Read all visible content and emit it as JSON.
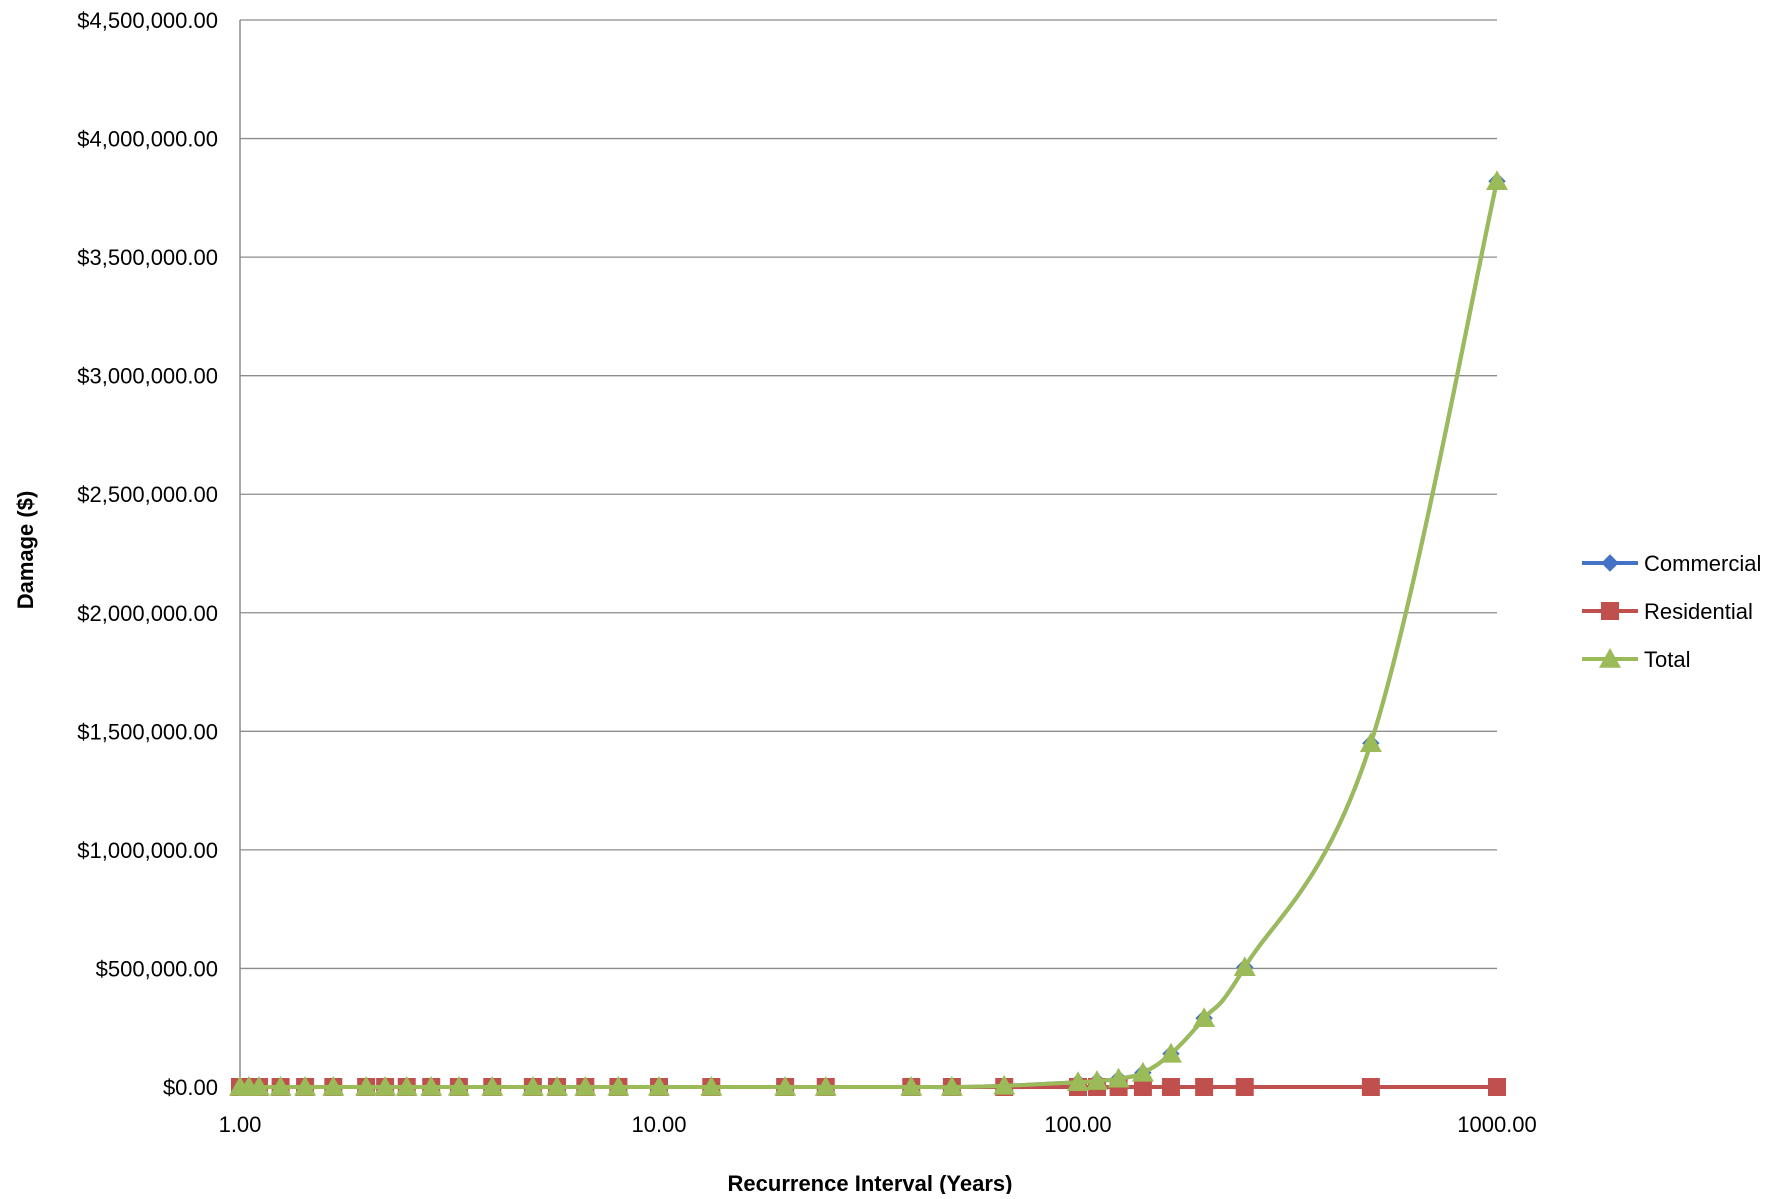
{
  "chart_data": {
    "type": "line",
    "title": "",
    "xlabel": "Recurrence Interval (Years)",
    "ylabel": "Damage ($)",
    "x_scale": "log",
    "xlim": [
      1,
      1000
    ],
    "ylim": [
      0,
      4500000
    ],
    "x_ticks": [
      "1.00",
      "10.00",
      "100.00",
      "1000.00"
    ],
    "y_ticks": [
      "$0.00",
      "$500,000.00",
      "$1,000,000.00",
      "$1,500,000.00",
      "$2,000,000.00",
      "$2,500,000.00",
      "$3,000,000.00",
      "$3,500,000.00",
      "$4,000,000.00",
      "$4,500,000.00"
    ],
    "grid": "horizontal",
    "legend_position": "right",
    "x": [
      1,
      1.05,
      1.11,
      1.25,
      1.43,
      1.67,
      2,
      2.22,
      2.5,
      2.86,
      3.33,
      4,
      5,
      5.71,
      6.67,
      8,
      10,
      13.33,
      20,
      25,
      40,
      50,
      66.67,
      100,
      111,
      125,
      142.86,
      166.67,
      200,
      250,
      500,
      1000
    ],
    "series": [
      {
        "name": "Commercial",
        "color": "#4472C4",
        "marker": "diamond",
        "values": [
          0,
          0,
          0,
          0,
          0,
          0,
          0,
          0,
          0,
          0,
          0,
          0,
          0,
          0,
          0,
          0,
          0,
          0,
          0,
          0,
          0,
          0,
          5000,
          20000,
          25000,
          35000,
          60000,
          140000,
          290000,
          505000,
          1450000,
          3820000
        ]
      },
      {
        "name": "Residential",
        "color": "#C0504D",
        "marker": "square",
        "values": [
          0,
          0,
          0,
          0,
          0,
          0,
          0,
          0,
          0,
          0,
          0,
          0,
          0,
          0,
          0,
          0,
          0,
          0,
          0,
          0,
          0,
          0,
          0,
          0,
          0,
          0,
          0,
          0,
          0,
          0,
          0,
          0
        ]
      },
      {
        "name": "Total",
        "color": "#9BBB59",
        "marker": "triangle",
        "values": [
          0,
          0,
          0,
          0,
          0,
          0,
          0,
          0,
          0,
          0,
          0,
          0,
          0,
          0,
          0,
          0,
          0,
          0,
          0,
          0,
          0,
          0,
          5000,
          20000,
          25000,
          35000,
          60000,
          140000,
          290000,
          505000,
          1450000,
          3820000
        ]
      }
    ]
  }
}
